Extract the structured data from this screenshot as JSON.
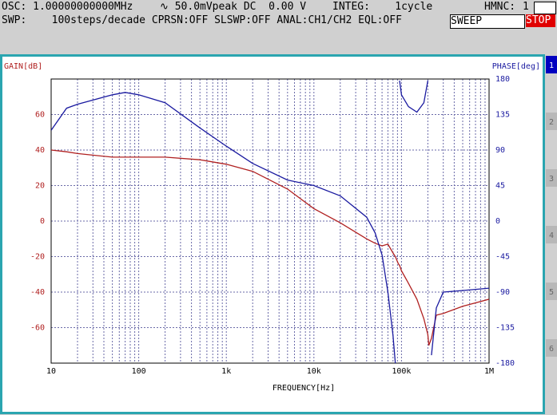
{
  "header": {
    "osc": "OSC: 1.00000000000MHz",
    "amp": "∿ 50.0mVpeak DC  0.00 V",
    "integ": "INTEG:    1cycle",
    "hmnc_label": "HMNC:",
    "hmnc": "1",
    "swp": "SWP:    100steps/decade CPRSN:OFF SLSWP:OFF ANAL:CH1/CH2 EQL:OFF",
    "sweep": "SWEEP",
    "stop": "STOP"
  },
  "tabs": [
    "1",
    "2",
    "3",
    "4",
    "5",
    "6"
  ],
  "chart_data": {
    "type": "line",
    "ylabel": "GAIN[dB]",
    "y2label": "PHASE[deg]",
    "xlabel": "FREQUENCY[Hz]",
    "xscale": "log",
    "grid": true,
    "xlim": [
      10,
      1000000
    ],
    "xticks": [
      10,
      100,
      {
        "value": 1000,
        "label": "1k"
      },
      {
        "value": 10000,
        "label": "10k"
      },
      {
        "value": 100000,
        "label": "100k"
      },
      {
        "value": 1000000,
        "label": "1M"
      }
    ],
    "ylim": [
      -80,
      80
    ],
    "yticks": [
      -60,
      -40,
      -20,
      0,
      20,
      40,
      60
    ],
    "y2lim": [
      -180,
      180
    ],
    "y2ticks": [
      -180,
      -135,
      -90,
      -45,
      0,
      45,
      90,
      135,
      180
    ],
    "x": [
      10,
      15,
      20,
      50,
      70,
      100,
      200,
      500,
      1000,
      2000,
      5000,
      10000,
      20000,
      40000,
      50000,
      60000,
      70000,
      80000,
      85000,
      92000,
      95000,
      100000,
      120000,
      150000,
      180000,
      200000,
      205000,
      220000,
      250000,
      300000,
      500000,
      1000000
    ],
    "series": [
      {
        "name": "GAIN",
        "color": "#b02020",
        "values": [
          40,
          39,
          38,
          36,
          36,
          36,
          36,
          34.5,
          32,
          28,
          18,
          7,
          -1,
          -10,
          -12.5,
          -14,
          -13,
          -18,
          -20,
          -24,
          -25,
          -28,
          -35,
          -44,
          -55,
          -64,
          -70,
          -66,
          -53,
          -52,
          -48,
          -44
        ]
      },
      {
        "name": "PHASE",
        "color": "#1a1aa0",
        "axis": "y2",
        "values": [
          115,
          143,
          148,
          160,
          163,
          160,
          150,
          118,
          95,
          73,
          52,
          45,
          32,
          5,
          -15,
          -43,
          -90,
          -145,
          -180,
          null,
          178,
          160,
          145,
          138,
          150,
          178,
          null,
          -170,
          -110,
          -90,
          -88,
          -85
        ]
      }
    ]
  }
}
